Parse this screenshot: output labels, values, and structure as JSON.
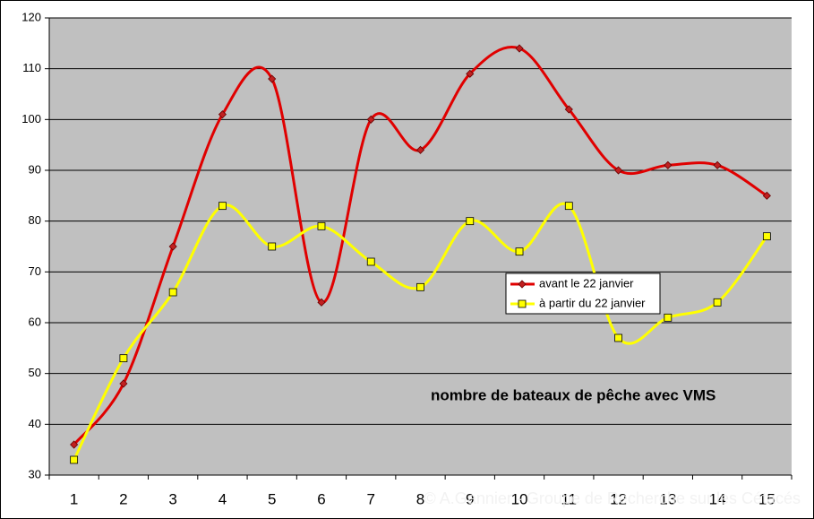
{
  "chart_data": {
    "type": "line",
    "smooth": true,
    "annotation": "nombre de bateaux de pêche avec VMS",
    "watermark": "© A.Gannier - Groupe de Recherche sur les Cétacés",
    "categories": [
      "1",
      "2",
      "3",
      "4",
      "5",
      "6",
      "7",
      "8",
      "9",
      "10",
      "11",
      "12",
      "13",
      "14",
      "15"
    ],
    "series": [
      {
        "name": "avant le 22 janvier",
        "color": "#e00000",
        "marker": "diamond",
        "marker_color": "#c02020",
        "values": [
          36,
          48,
          75,
          101,
          108,
          64,
          100,
          94,
          109,
          114,
          102,
          90,
          91,
          91,
          85
        ]
      },
      {
        "name": "à partir du 22 janvier",
        "color": "#ffff00",
        "marker": "square",
        "marker_color": "#ffff00",
        "values": [
          33,
          53,
          66,
          83,
          75,
          79,
          72,
          67,
          80,
          74,
          83,
          57,
          61,
          64,
          77
        ]
      }
    ],
    "ylim": [
      30,
      120
    ],
    "yticks": [
      30,
      40,
      50,
      60,
      70,
      80,
      90,
      100,
      110,
      120
    ],
    "grid": true,
    "plot_background": "#c0c0c0"
  }
}
